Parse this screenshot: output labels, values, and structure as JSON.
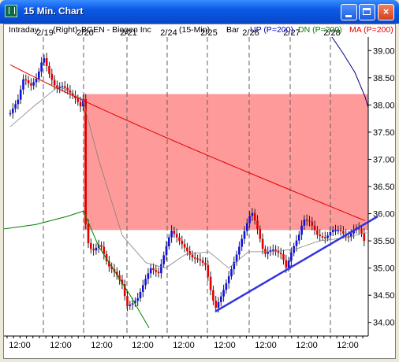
{
  "window": {
    "title": "15 Min. Chart",
    "controls": {
      "minimize": "minimize",
      "maximize": "maximize",
      "close": "×"
    }
  },
  "chart_header": {
    "mode": "Intraday",
    "scale_side": "(Right)",
    "symbol": "BGEN - Biogen Inc",
    "interval": "(15-Min)",
    "style": "Bar",
    "up_label": "UP (P=200)",
    "dn_label": "DN (P=200)",
    "ma_label": "MA (P=200)"
  },
  "colors": {
    "up_candle": "#1010e0",
    "down_candle": "#e00000",
    "up_band": "#008000",
    "dn_band": "#000080",
    "ma": "#e00000",
    "zone_fill": "#ff9a9a",
    "trendline": "#3434e0",
    "thin_ma": "#808080"
  },
  "chart_data": {
    "type": "candlestick",
    "title": "BGEN - Biogen Inc (15-Min)",
    "date_labels": [
      "2/19",
      "2/20",
      "2/21",
      "2/24",
      "2/25",
      "2/26",
      "2/27",
      "2/28"
    ],
    "time_labels": [
      "12:00",
      "12:00",
      "12:00",
      "12:00",
      "12:00",
      "12:00",
      "12:00",
      "12:00",
      "12:00"
    ],
    "y_ticks": [
      "34.00",
      "34.50",
      "35.00",
      "35.50",
      "36.00",
      "36.50",
      "37.00",
      "37.50",
      "38.00",
      "38.50",
      "39.00"
    ],
    "ylim": [
      33.75,
      39.25
    ],
    "price_scale": "right",
    "shaded_zone": {
      "low": 35.7,
      "high": 38.2
    },
    "trendline": {
      "from": {
        "bar": 0.0,
        "price": 34.2
      },
      "to": {
        "bar": 1.0,
        "price": 35.95
      }
    },
    "session_close_price": [
      37.8,
      38.3,
      38.85,
      38.4,
      38.2,
      35.45,
      35.2,
      34.85,
      34.25,
      34.55,
      35.6,
      35.35,
      35.2,
      34.25,
      35.0,
      35.55,
      35.95,
      35.2,
      35.3,
      35.9,
      35.75,
      35.6,
      35.5,
      35.7
    ]
  }
}
